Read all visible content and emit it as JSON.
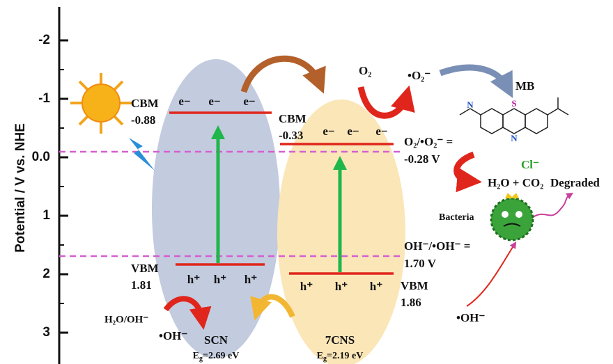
{
  "axis": {
    "label": "Potential / V vs. NHE",
    "ticks": [
      "-2",
      "-1",
      "0.0",
      "1",
      "2",
      "3"
    ]
  },
  "scn": {
    "cbm_label": "CBM",
    "cbm_value": "-0.88",
    "vbm_label": "VBM",
    "vbm_value": "1.81",
    "electrons": [
      "e−",
      "e−",
      "e−"
    ],
    "holes": [
      "h⁺",
      "h⁺",
      "h⁺"
    ],
    "name": "SCN",
    "bandgap": {
      "symbol": "E",
      "subscript": "g",
      "value": "=2.69 eV"
    }
  },
  "cns": {
    "cbm_label": "CBM",
    "cbm_value": "-0.33",
    "vbm_label": "VBM",
    "vbm_value": "1.86",
    "electrons": [
      "e−",
      "e−",
      "e−"
    ],
    "holes": [
      "h⁺",
      "h⁺",
      "h⁺"
    ],
    "name": "7CNS",
    "bandgap": {
      "symbol": "E",
      "subscript": "g",
      "value": "=2.19 eV"
    }
  },
  "potentials": {
    "o2": {
      "label": "O₂/•O₂⁻ =",
      "value": "-0.28 V"
    },
    "oh": {
      "label": "OH⁻/•OH⁻ =",
      "value": "1.70 V"
    }
  },
  "species": {
    "o2": "O₂",
    "superoxide": "•O₂⁻",
    "mb": "MB",
    "cl": "Cl⁻",
    "products": "H₂O + CO₂",
    "degraded": "Degraded",
    "bacteria": "Bacteria",
    "oh_radical_right": "•OH⁻",
    "h2o_oh": "H₂O/OH⁻",
    "oh_radical_left": "•OH⁻",
    "s_atom": "S",
    "n_atom": "N",
    "n_atom2": "N"
  }
}
